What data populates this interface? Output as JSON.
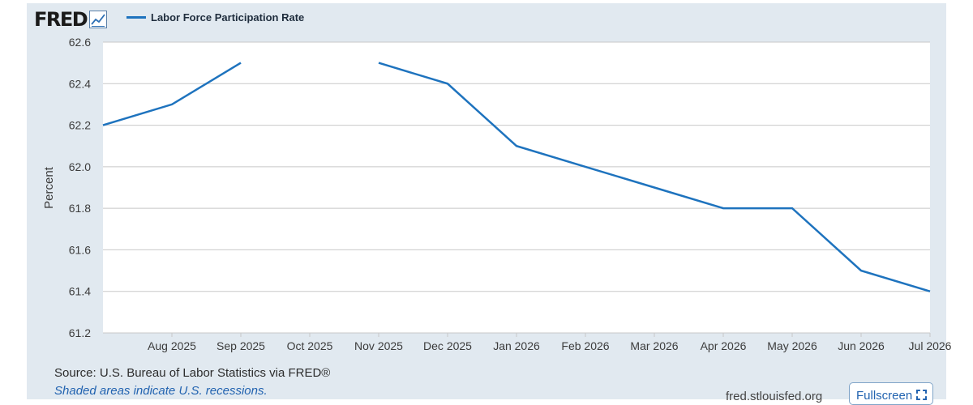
{
  "logo": {
    "text": "FRED"
  },
  "legend": {
    "label": "Labor Force Participation Rate",
    "color": "#1e73be"
  },
  "chart_data": {
    "type": "line",
    "title": "",
    "xlabel": "",
    "ylabel": "Percent",
    "ylim": [
      61.2,
      62.6
    ],
    "yticks": [
      "61.2",
      "61.4",
      "61.6",
      "61.8",
      "62.0",
      "62.2",
      "62.4",
      "62.6"
    ],
    "x_ticks": [
      "Aug 2025",
      "Sep 2025",
      "Oct 2025",
      "Nov 2025",
      "Dec 2025",
      "Jan 2026",
      "Feb 2026",
      "Mar 2026",
      "Apr 2026",
      "May 2026",
      "Jun 2026",
      "Jul 2026"
    ],
    "x": [
      "Jul 2025",
      "Aug 2025",
      "Sep 2025",
      "Oct 2025",
      "Nov 2025",
      "Dec 2025",
      "Jan 2026",
      "Feb 2026",
      "Mar 2026",
      "Apr 2026",
      "May 2026",
      "Jun 2026",
      "Jul 2026"
    ],
    "grid": true,
    "series": [
      {
        "name": "Labor Force Participation Rate",
        "color": "#1e73be",
        "values": [
          62.2,
          62.3,
          62.5,
          null,
          62.5,
          62.4,
          62.1,
          62.0,
          61.9,
          61.8,
          61.8,
          61.5,
          61.4
        ]
      }
    ]
  },
  "footer": {
    "source": "Source: U.S. Bureau of Labor Statistics via FRED®",
    "recession_note": "Shaded areas indicate U.S. recessions.",
    "site": "fred.stlouisfed.org",
    "fullscreen_label": "Fullscreen"
  }
}
